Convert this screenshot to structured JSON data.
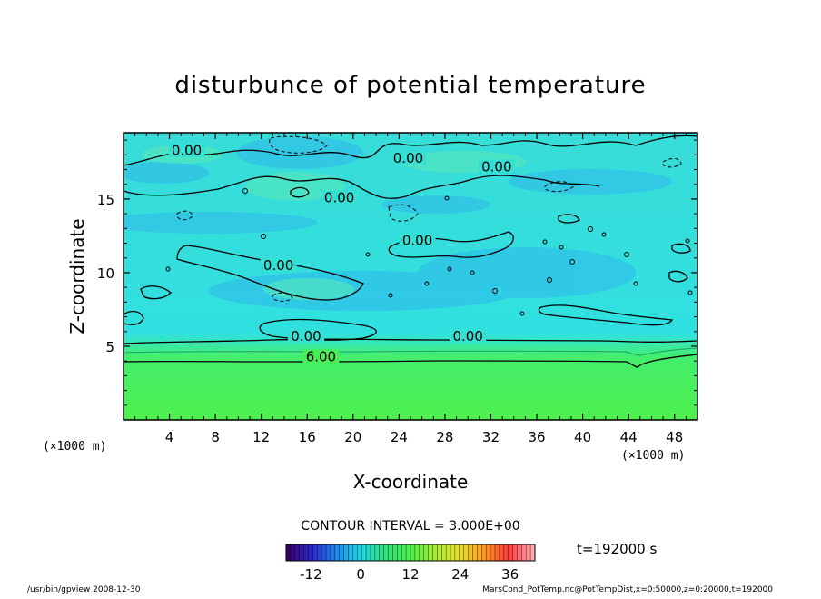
{
  "chart_data": {
    "type": "heatmap",
    "title": "disturbunce of potential temperature",
    "xlabel": "X-coordinate",
    "ylabel": "Z-coordinate",
    "x_unit": "(×1000 m)",
    "x_unit_left": "(×1000 m)",
    "xlim": [
      0,
      50
    ],
    "ylim": [
      0,
      19.5
    ],
    "x_ticks": [
      4,
      8,
      12,
      16,
      20,
      24,
      28,
      32,
      36,
      40,
      44,
      48
    ],
    "y_ticks": [
      5,
      10,
      15
    ],
    "contour_interval_text": "CONTOUR INTERVAL = 3.000E+00",
    "contour_labels": [
      {
        "text": "0.00",
        "x": 5.5,
        "z": 18.1
      },
      {
        "text": "0.00",
        "x": 24.8,
        "z": 17.6
      },
      {
        "text": "0.00",
        "x": 32.5,
        "z": 17.0
      },
      {
        "text": "0.00",
        "x": 18.8,
        "z": 14.9
      },
      {
        "text": "0.00",
        "x": 25.6,
        "z": 12.0
      },
      {
        "text": "0.00",
        "x": 13.5,
        "z": 10.3
      },
      {
        "text": "0.00",
        "x": 15.9,
        "z": 5.5
      },
      {
        "text": "0.00",
        "x": 30.0,
        "z": 5.5
      },
      {
        "text": "6.00",
        "x": 17.2,
        "z": 4.1
      }
    ],
    "colorbar": {
      "ticks": [
        -12,
        0,
        12,
        24,
        36
      ],
      "range": [
        -18,
        42
      ],
      "colors": [
        "#3a006a",
        "#2a2ad0",
        "#1a8cf0",
        "#20d8e0",
        "#34e07a",
        "#4cf04c",
        "#a8ec34",
        "#e8e030",
        "#ff9a20",
        "#ff3a3a",
        "#ffa8b0"
      ]
    },
    "field_colors": {
      "upper": "#33e2dc",
      "lower": "#48ee56",
      "transition": "#3ae6a0"
    },
    "time_text": "t=192000 s"
  },
  "footer": {
    "left": "/usr/bin/gpview   2008-12-30",
    "right": "MarsCond_PotTemp.nc@PotTempDist,x=0:50000,z=0:20000,t=192000"
  }
}
